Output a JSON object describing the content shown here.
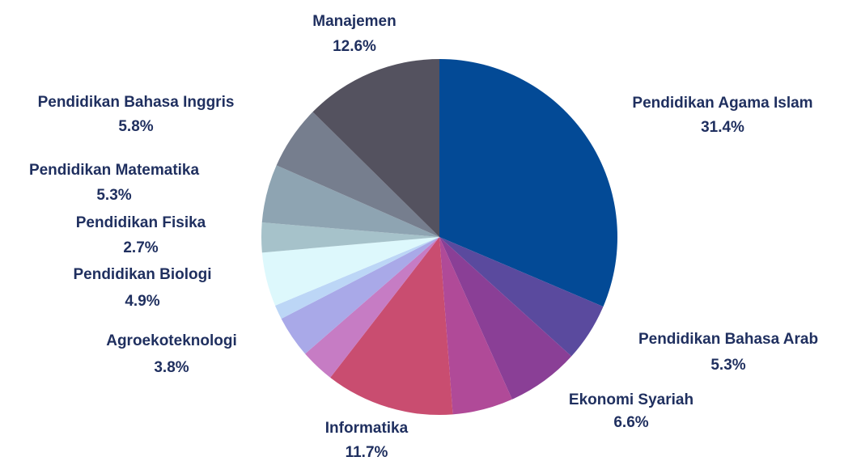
{
  "chart_data": {
    "type": "pie",
    "categories": [
      "Pendidikan Agama Islam",
      "Pendidikan Bahasa Arab",
      "Ekonomi  Syariah",
      null,
      "Informatika",
      null,
      "Agroekoteknologi",
      null,
      "Pendidikan Biologi",
      "Pendidikan Fisika",
      "Pendidikan Matematika",
      "Pendidikan Bahasa Inggris",
      "Manajemen"
    ],
    "values": [
      31.4,
      5.3,
      6.6,
      5.5,
      11.7,
      3.1,
      3.8,
      1.3,
      4.9,
      2.7,
      5.3,
      5.8,
      12.6
    ],
    "value_labels": [
      "31.4%",
      "5.3%",
      "6.6%",
      null,
      "11.7%",
      null,
      "3.8%",
      null,
      "4.9%",
      "2.7%",
      "5.3%",
      "5.8%",
      "12.6%"
    ],
    "colors": [
      "#034a96",
      "#5a4a9e",
      "#8a3f96",
      "#b04a98",
      "#c94d70",
      "#c67cc4",
      "#a9a9e8",
      "#bcd6f6",
      "#ddf8fc",
      "#a6c2ca",
      "#8ea4b2",
      "#767e8e",
      "#54525f"
    ]
  }
}
